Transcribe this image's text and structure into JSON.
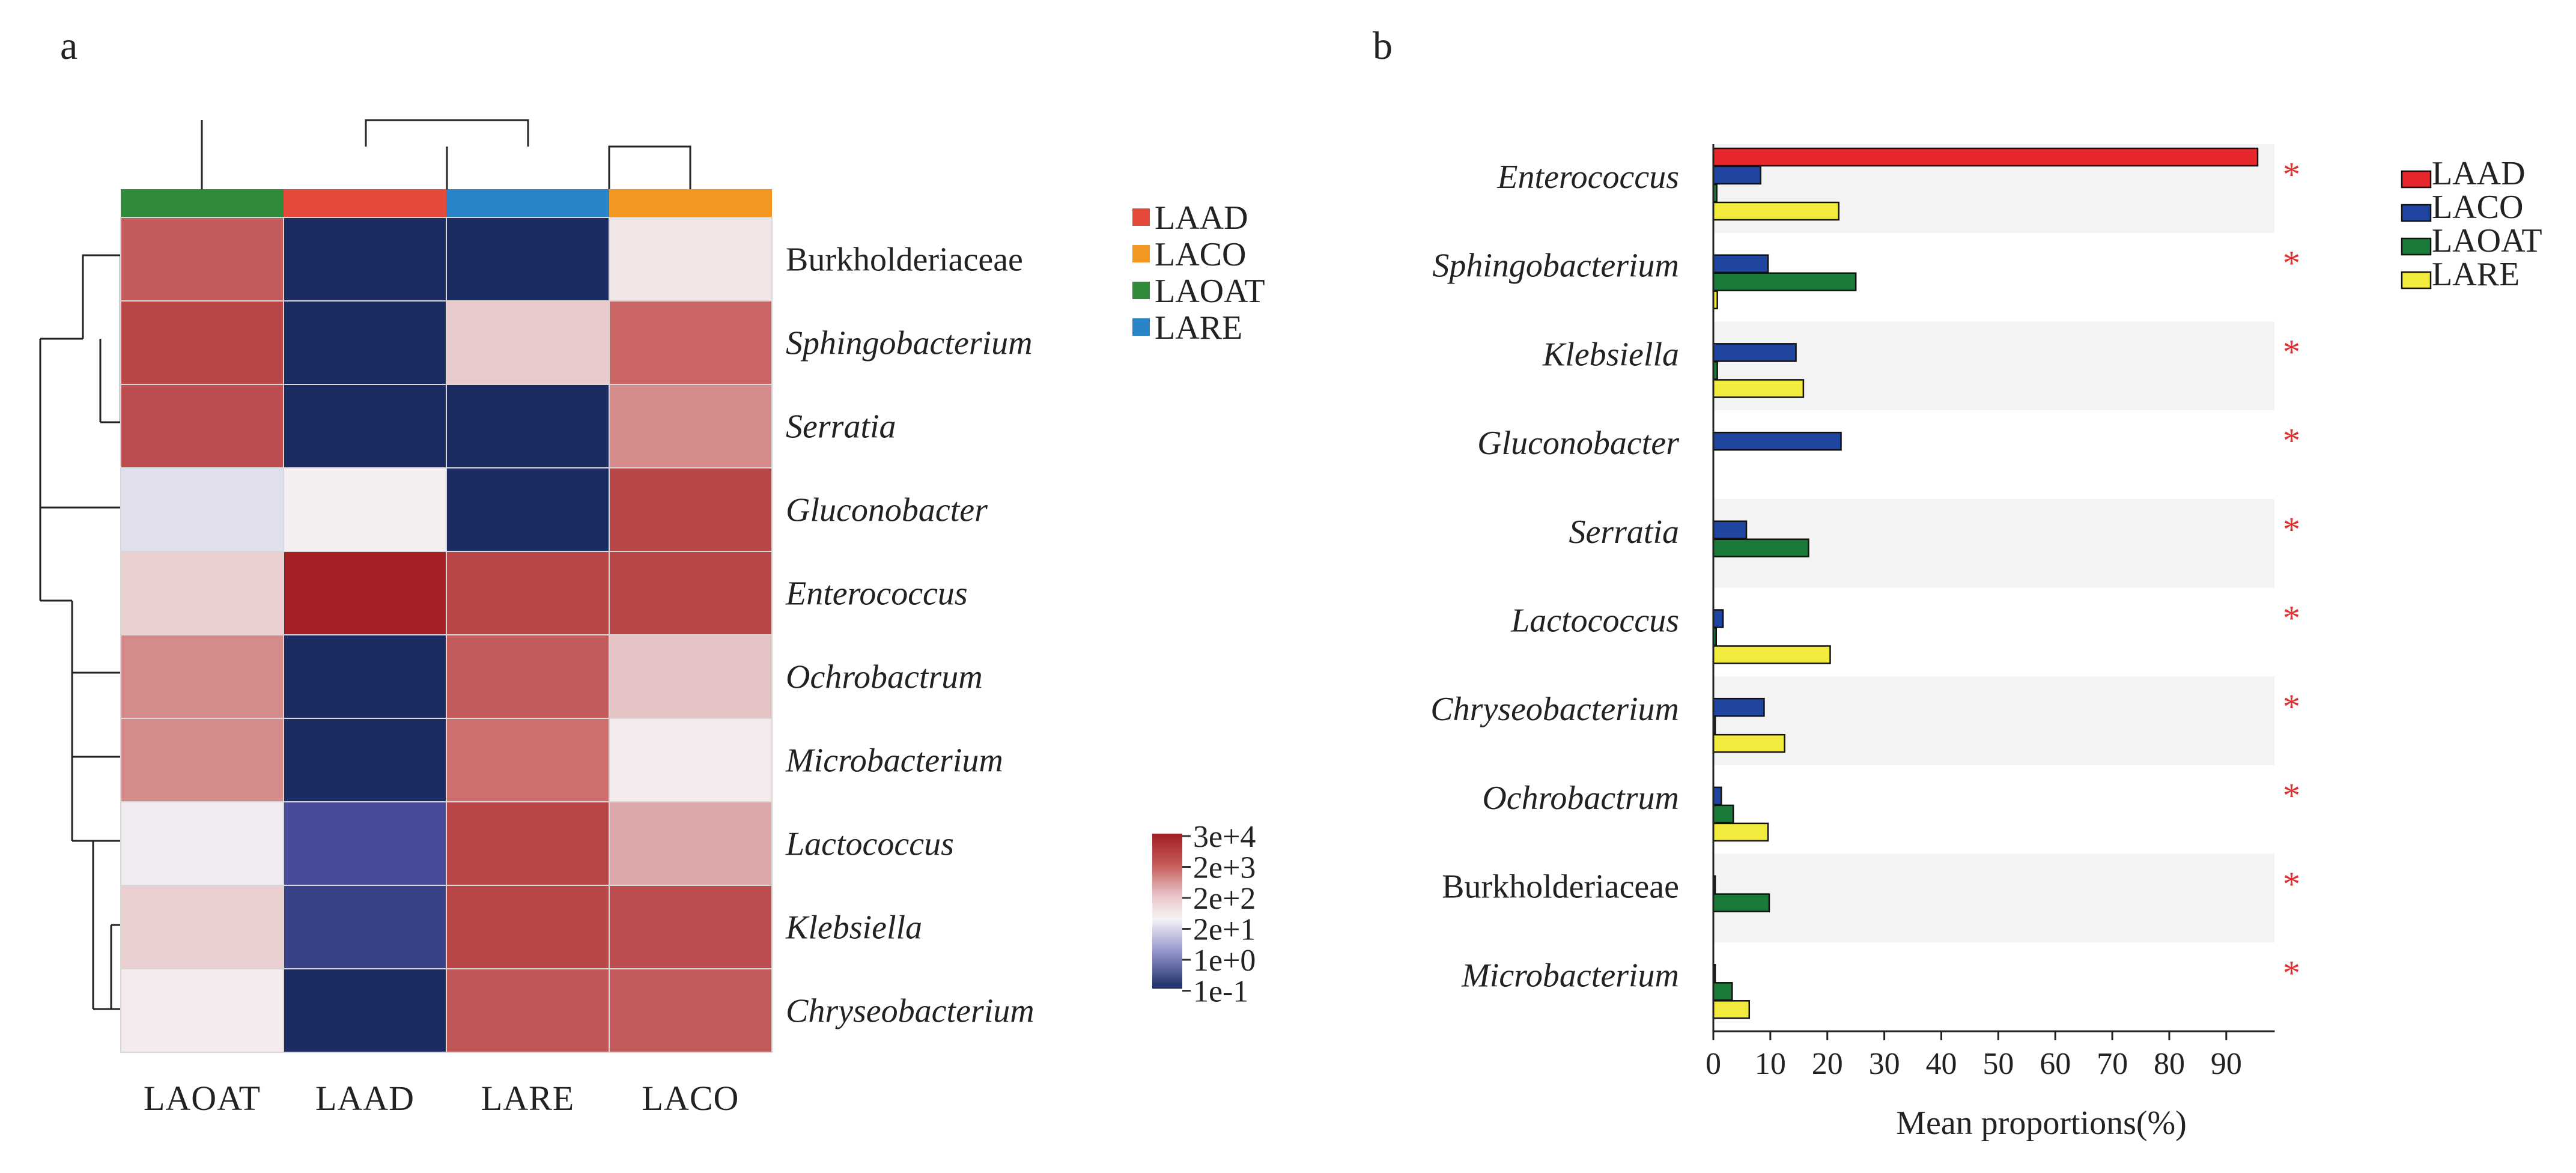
{
  "panel_a": {
    "letter": "a",
    "chart_data": {
      "type": "heatmap",
      "columns": [
        "LAOAT",
        "LAAD",
        "LARE",
        "LACO"
      ],
      "column_colors": [
        "#2f8a3a",
        "#e54b3c",
        "#2a84c8",
        "#f39622"
      ],
      "rows": [
        "Burkholderiaceae",
        "Sphingobacterium",
        "Serratia",
        "Gluconobacter",
        "Enterococcus",
        "Ochrobactrum",
        "Microbacterium",
        "Lactococcus",
        "Klebsiella",
        "Chryseobacterium"
      ],
      "row_italic": [
        false,
        true,
        true,
        true,
        true,
        true,
        true,
        true,
        true,
        true
      ],
      "values_log10": [
        [
          3.2,
          -1.0,
          -1.0,
          1.4
        ],
        [
          3.6,
          -1.0,
          1.9,
          3.0
        ],
        [
          3.5,
          -1.0,
          -1.0,
          2.6
        ],
        [
          0.6,
          1.1,
          -1.0,
          3.6
        ],
        [
          1.8,
          4.4,
          3.6,
          3.6
        ],
        [
          2.6,
          -1.0,
          3.2,
          2.0
        ],
        [
          2.6,
          -1.0,
          2.9,
          1.3
        ],
        [
          1.0,
          -0.1,
          3.6,
          2.3
        ],
        [
          1.8,
          -0.4,
          3.6,
          3.5
        ],
        [
          1.3,
          -1.0,
          3.3,
          3.2
        ]
      ],
      "legend": {
        "labels": [
          "LAAD",
          "LACO",
          "LAOAT",
          "LARE"
        ],
        "colors": [
          "#e54b3c",
          "#f39622",
          "#2f8a3a",
          "#2a84c8"
        ]
      },
      "colorbar": {
        "labels": [
          "3e+4",
          "2e+3",
          "2e+2",
          "2e+1",
          "1e+0",
          "1e-1"
        ],
        "colors": [
          "#a01e22",
          "#c65a5a",
          "#e8c4c8",
          "#f6f3f5",
          "#9a9ad0",
          "#1b2a66"
        ]
      }
    }
  },
  "panel_b": {
    "letter": "b",
    "chart_data": {
      "type": "bar",
      "orientation": "horizontal",
      "categories": [
        "Enterococcus",
        "Sphingobacterium",
        "Klebsiella",
        "Gluconobacter",
        "Serratia",
        "Lactococcus",
        "Chryseobacterium",
        "Ochrobactrum",
        "Burkholderiaceae",
        "Microbacterium"
      ],
      "category_italic": [
        true,
        true,
        true,
        true,
        true,
        true,
        true,
        true,
        false,
        true
      ],
      "series": [
        {
          "name": "LAAD",
          "color": "#e8262e",
          "values": [
            95.5,
            0.0,
            0.0,
            0.0,
            0.0,
            0.0,
            0.0,
            0.0,
            0.0,
            0.0
          ]
        },
        {
          "name": "LACO",
          "color": "#1f45a0",
          "values": [
            8.3,
            9.6,
            14.5,
            22.4,
            5.8,
            1.7,
            8.9,
            1.4,
            0.3,
            0.3
          ]
        },
        {
          "name": "LAOAT",
          "color": "#1a7a3a",
          "values": [
            0.6,
            25.0,
            0.7,
            0.0,
            16.7,
            0.5,
            0.2,
            3.5,
            9.8,
            3.3
          ]
        },
        {
          "name": "LARE",
          "color": "#f2ea3c",
          "values": [
            22.0,
            0.7,
            15.8,
            0.0,
            0.0,
            20.5,
            12.5,
            9.6,
            0.0,
            6.3
          ]
        }
      ],
      "significance": [
        "*",
        "*",
        "*",
        "*",
        "*",
        "*",
        "*",
        "*",
        "*",
        "*"
      ],
      "xlabel": "Mean proportions(%)",
      "xticks": [
        "0",
        "10",
        "20",
        "30",
        "40",
        "50",
        "60",
        "70",
        "80",
        "90"
      ],
      "xlim": [
        0,
        98.5
      ]
    }
  }
}
